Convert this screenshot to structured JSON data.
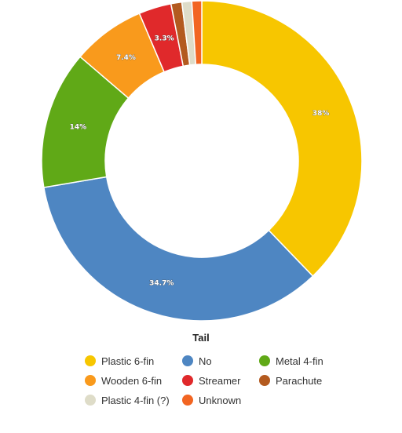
{
  "chart_data": {
    "type": "pie",
    "donut": true,
    "legend_title": "Tail",
    "legend_position": "bottom",
    "slices": [
      {
        "name": "Plastic 6-fin",
        "value": 38,
        "label": "38%",
        "color": "#f7c600"
      },
      {
        "name": "No",
        "value": 34.7,
        "label": "34.7%",
        "color": "#4e86c2"
      },
      {
        "name": "Metal 4-fin",
        "value": 14,
        "label": "14%",
        "color": "#60a917"
      },
      {
        "name": "Wooden 6-fin",
        "value": 7.4,
        "label": "7.4%",
        "color": "#f99a1c"
      },
      {
        "name": "Streamer",
        "value": 3.3,
        "label": "3.3%",
        "color": "#e0292b"
      },
      {
        "name": "Parachute",
        "value": 1.1,
        "label": "",
        "color": "#b35a1f"
      },
      {
        "name": "Plastic 4-fin (?)",
        "value": 1.0,
        "label": "",
        "color": "#dedcc8"
      },
      {
        "name": "Unknown",
        "value": 1.0,
        "label": "",
        "color": "#f26522"
      }
    ]
  }
}
